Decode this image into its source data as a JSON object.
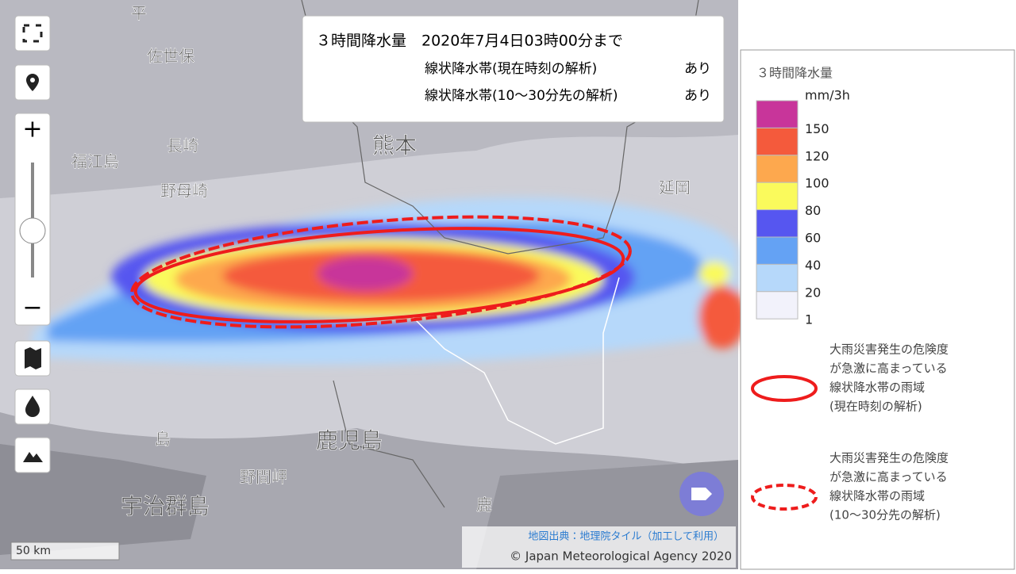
{
  "info": {
    "title": "３時間降水量　2020年7月4日03時00分まで",
    "rows": [
      {
        "label": "線状降水帯(現在時刻の解析)",
        "value": "あり"
      },
      {
        "label": "線状降水帯(10～30分先の解析)",
        "value": "あり"
      }
    ]
  },
  "map": {
    "places": [
      "佐世保",
      "長崎",
      "熊本",
      "延岡",
      "福江島",
      "野母崎",
      "鹿児島",
      "野間岬",
      "宇治群島",
      "島",
      "平",
      "鹿"
    ],
    "scale": "50 km",
    "credits": [
      "地図出典：地理院タイル（加工して利用）",
      "© Japan Meteorological Agency 2020"
    ]
  },
  "controls": {
    "zoom_in": "+",
    "zoom_out": "−"
  },
  "legend": {
    "title": "３時間降水量",
    "unit": "mm/3h",
    "levels": [
      {
        "value": 150,
        "color": "#c8359a"
      },
      {
        "value": 120,
        "color": "#f45a3c"
      },
      {
        "value": 100,
        "color": "#fda84e"
      },
      {
        "value": 80,
        "color": "#fafa5c"
      },
      {
        "value": 60,
        "color": "#5656f0"
      },
      {
        "value": 40,
        "color": "#64a2f4"
      },
      {
        "value": 20,
        "color": "#b6d8fa"
      },
      {
        "value": 1,
        "color": "#f2f2fb"
      }
    ],
    "items": [
      {
        "lines": [
          "大雨災害発生の危険度",
          "が急激に高まっている",
          "線状降水帯の雨域",
          "(現在時刻の解析)"
        ]
      },
      {
        "lines": [
          "大雨災害発生の危険度",
          "が急激に高まっている",
          "線状降水帯の雨域",
          "(10～30分先の解析)"
        ]
      }
    ]
  }
}
